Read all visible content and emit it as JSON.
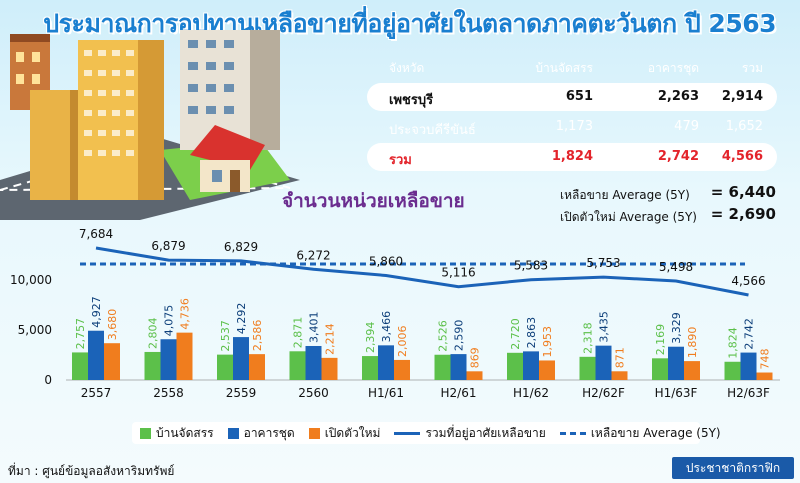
{
  "title": "ประมาณการอุปทานเหลือขายที่อยู่อาศัยในตลาดภาคตะวันตก ปี 2563",
  "table": {
    "headers": [
      "จังหวัด",
      "บ้านจัดสรร",
      "อาคารชุด",
      "รวม"
    ],
    "rows": [
      {
        "province": "เพชรบุรี",
        "house": "651",
        "condo": "2,263",
        "total": "2,914"
      },
      {
        "province": "ประจวบคีรีขันธ์",
        "house": "1,173",
        "condo": "479",
        "total": "1,652"
      },
      {
        "province": "รวม",
        "house": "1,824",
        "condo": "2,742",
        "total": "4,566"
      }
    ]
  },
  "subtitle": "จำนวนหน่วยเหลือขาย",
  "averages": [
    {
      "label": "เหลือขาย Average (5Y)",
      "eq": "=",
      "value": "6,440"
    },
    {
      "label": "เปิดตัวใหม่ Average (5Y)",
      "eq": "=",
      "value": "2,690"
    }
  ],
  "chart_data": {
    "type": "bar",
    "categories": [
      "2557",
      "2558",
      "2559",
      "2560",
      "H1/61",
      "H2/61",
      "H1/62",
      "H2/62F",
      "H1/63F",
      "H2/63F"
    ],
    "series": [
      {
        "name": "บ้านจัดสรร",
        "values": [
          2757,
          2804,
          2537,
          2871,
          2394,
          2526,
          2720,
          2318,
          2169,
          1824
        ],
        "labels": [
          "2,757",
          "2,804",
          "2,537",
          "2,871",
          "2,394",
          "2,526",
          "2,720",
          "2,318",
          "2,169",
          "1,824"
        ],
        "color": "#5cc04a"
      },
      {
        "name": "อาคารชุด",
        "values": [
          4927,
          4075,
          4292,
          3401,
          3466,
          2590,
          2863,
          3435,
          3329,
          2742
        ],
        "labels": [
          "4,927",
          "4,075",
          "4,292",
          "3,401",
          "3,466",
          "2,590",
          "2,863",
          "3,435",
          "3,329",
          "2,742"
        ],
        "color": "#1b63b8"
      },
      {
        "name": "เปิดตัวใหม่",
        "values": [
          3680,
          4736,
          2586,
          2214,
          2006,
          869,
          1953,
          871,
          1890,
          748
        ],
        "labels": [
          "3,680",
          "4,736",
          "2,586",
          "2,214",
          "2,006",
          "869",
          "1,953",
          "871",
          "1,890",
          "748"
        ],
        "color": "#f07d1e"
      }
    ],
    "line_series": {
      "name": "รวมที่อยู่อาศัยเหลือขาย",
      "values": [
        7684,
        6879,
        6829,
        6272,
        5860,
        5116,
        5583,
        5753,
        5498,
        4566
      ],
      "labels": [
        "7,684",
        "6,879",
        "6,829",
        "6,272",
        "5,860",
        "5,116",
        "5,583",
        "5,753",
        "5,498",
        "4,566"
      ],
      "color": "#1b63b8"
    },
    "average_line": {
      "name": "เหลือขาย Average (5Y)",
      "color": "#1b63b8"
    },
    "yticks": [
      "10,000",
      "5,000",
      "0"
    ],
    "ylim": [
      0,
      6000
    ]
  },
  "legend": {
    "items": [
      {
        "label": "บ้านจัดสรร",
        "kind": "swatch",
        "color": "#5cc04a"
      },
      {
        "label": "อาคารชุด",
        "kind": "swatch",
        "color": "#1b63b8"
      },
      {
        "label": "เปิดตัวใหม่",
        "kind": "swatch",
        "color": "#f07d1e"
      },
      {
        "label": "รวมที่อยู่อาศัยเหลือขาย",
        "kind": "line",
        "color": "#1b63b8"
      },
      {
        "label": "เหลือขาย Average (5Y)",
        "kind": "dash",
        "color": "#1b63b8"
      }
    ]
  },
  "source": "ที่มา : ศูนย์ข้อมูลอสังหาริมทรัพย์",
  "brand": "ประชาชาติกราฟิก"
}
